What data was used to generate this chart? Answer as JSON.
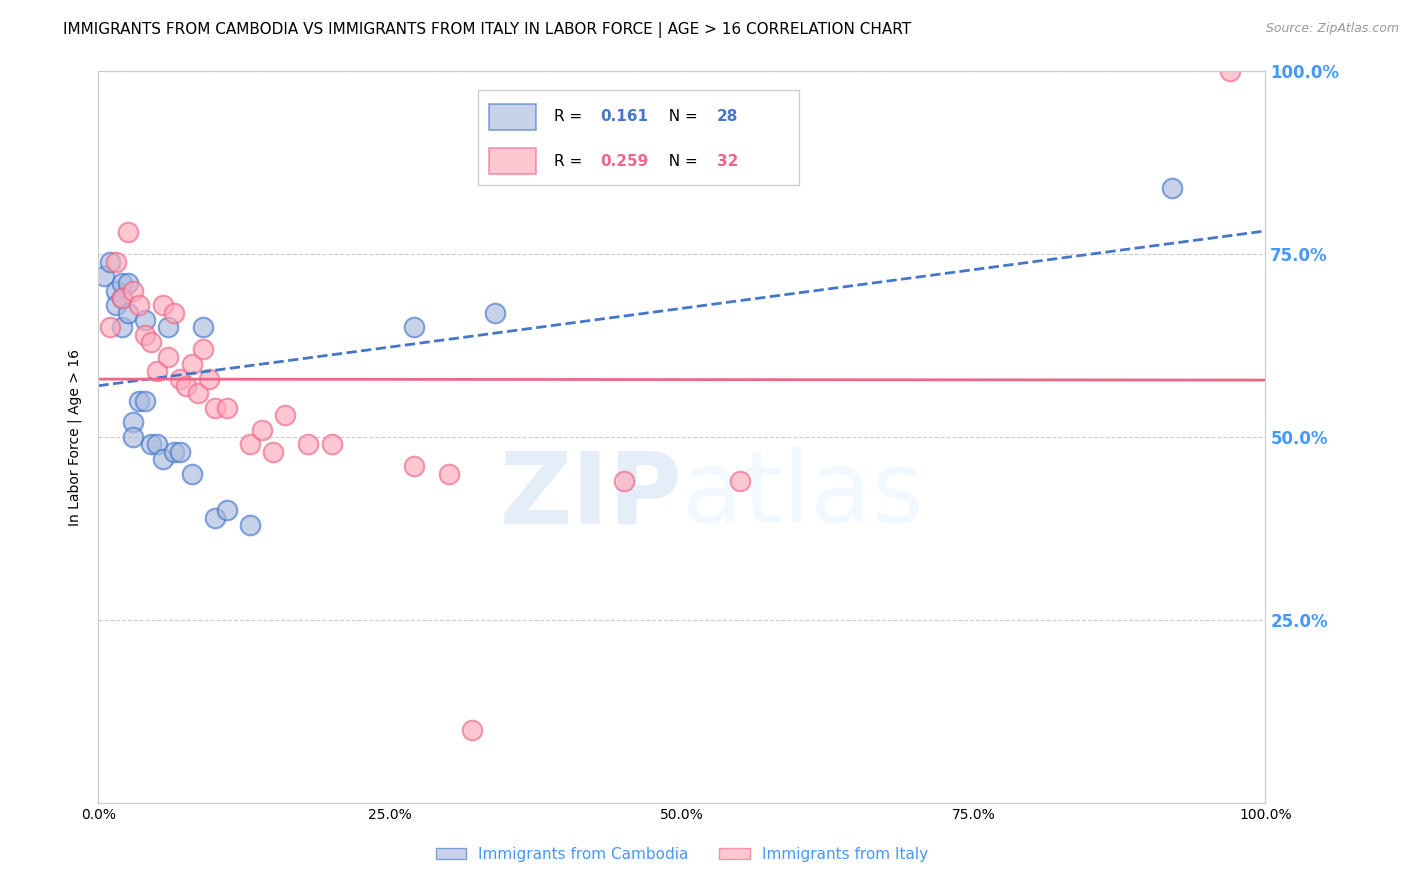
{
  "title": "IMMIGRANTS FROM CAMBODIA VS IMMIGRANTS FROM ITALY IN LABOR FORCE | AGE > 16 CORRELATION CHART",
  "source": "Source: ZipAtlas.com",
  "ylabel": "In Labor Force | Age > 16",
  "watermark_zip": "ZIP",
  "watermark_atlas": "atlas",
  "legend_labels": [
    "Immigrants from Cambodia",
    "Immigrants from Italy"
  ],
  "xlim": [
    0.0,
    1.0
  ],
  "ylim": [
    0.0,
    1.0
  ],
  "xticks": [
    0.0,
    0.25,
    0.5,
    0.75,
    1.0
  ],
  "yticks": [
    0.0,
    0.25,
    0.5,
    0.75,
    1.0
  ],
  "xtick_labels": [
    "0.0%",
    "25.0%",
    "50.0%",
    "75.0%",
    "100.0%"
  ],
  "right_ytick_labels": [
    "25.0%",
    "50.0%",
    "75.0%",
    "100.0%"
  ],
  "right_yticks": [
    0.25,
    0.5,
    0.75,
    1.0
  ],
  "cambodia_x": [
    0.005,
    0.01,
    0.015,
    0.015,
    0.02,
    0.02,
    0.02,
    0.025,
    0.025,
    0.03,
    0.03,
    0.035,
    0.04,
    0.04,
    0.045,
    0.05,
    0.055,
    0.06,
    0.065,
    0.07,
    0.08,
    0.09,
    0.1,
    0.11,
    0.13,
    0.27,
    0.34,
    0.92
  ],
  "cambodia_y": [
    0.72,
    0.74,
    0.7,
    0.68,
    0.71,
    0.69,
    0.65,
    0.71,
    0.67,
    0.52,
    0.5,
    0.55,
    0.66,
    0.55,
    0.49,
    0.49,
    0.47,
    0.65,
    0.48,
    0.48,
    0.45,
    0.65,
    0.39,
    0.4,
    0.38,
    0.65,
    0.67,
    0.84
  ],
  "italy_x": [
    0.01,
    0.015,
    0.02,
    0.025,
    0.03,
    0.035,
    0.04,
    0.045,
    0.05,
    0.055,
    0.06,
    0.065,
    0.07,
    0.075,
    0.08,
    0.085,
    0.09,
    0.095,
    0.1,
    0.11,
    0.13,
    0.14,
    0.15,
    0.16,
    0.18,
    0.2,
    0.27,
    0.3,
    0.32,
    0.45,
    0.55,
    0.97
  ],
  "italy_y": [
    0.65,
    0.74,
    0.69,
    0.78,
    0.7,
    0.68,
    0.64,
    0.63,
    0.59,
    0.68,
    0.61,
    0.67,
    0.58,
    0.57,
    0.6,
    0.56,
    0.62,
    0.58,
    0.54,
    0.54,
    0.49,
    0.51,
    0.48,
    0.53,
    0.49,
    0.49,
    0.46,
    0.45,
    0.1,
    0.44,
    0.44,
    1.0
  ],
  "cambodia_color": "#aabbdd",
  "italy_color": "#ffaabb",
  "trendline_cambodia_color": "#4477cc",
  "trendline_italy_color": "#ee6688",
  "background_color": "#ffffff",
  "grid_color": "#cccccc",
  "axis_color": "#cccccc",
  "title_fontsize": 11,
  "label_fontsize": 10,
  "tick_fontsize": 10,
  "right_axis_color": "#4499ff",
  "bottom_legend_color": "#4499ff",
  "r_cambodia": "0.161",
  "n_cambodia": "28",
  "r_italy": "0.259",
  "n_italy": "32"
}
